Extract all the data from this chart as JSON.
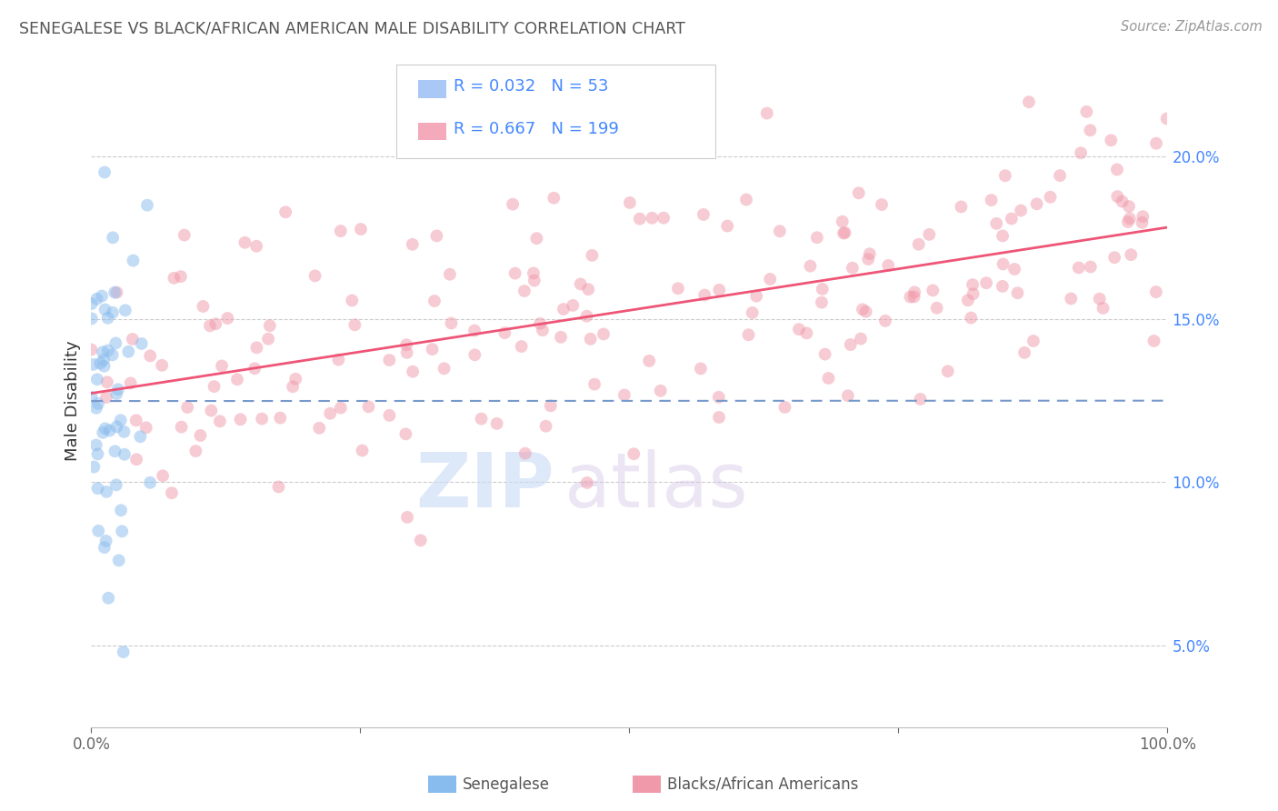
{
  "title": "SENEGALESE VS BLACK/AFRICAN AMERICAN MALE DISABILITY CORRELATION CHART",
  "source": "Source: ZipAtlas.com",
  "ylabel": "Male Disability",
  "legend_entries": [
    {
      "label": "Senegalese",
      "R": 0.032,
      "N": 53,
      "color": "#aac8f5"
    },
    {
      "label": "Blacks/African Americans",
      "R": 0.667,
      "N": 199,
      "color": "#f5aabb"
    }
  ],
  "watermark_part1": "ZIP",
  "watermark_part2": "atlas",
  "background_color": "#ffffff",
  "plot_bg_color": "#ffffff",
  "grid_color": "#cccccc",
  "title_color": "#555555",
  "r_color": "#4488ff",
  "senegalese_scatter_color": "#88bbee",
  "black_scatter_color": "#f099aa",
  "senegalese_line_color": "#7799cc",
  "black_line_color": "#ee5577",
  "xmin": 0.0,
  "xmax": 1.0,
  "ymin": 0.025,
  "ymax": 0.225,
  "yticks": [
    0.05,
    0.1,
    0.15,
    0.2
  ],
  "ytick_labels": [
    "5.0%",
    "10.0%",
    "15.0%",
    "20.0%"
  ]
}
